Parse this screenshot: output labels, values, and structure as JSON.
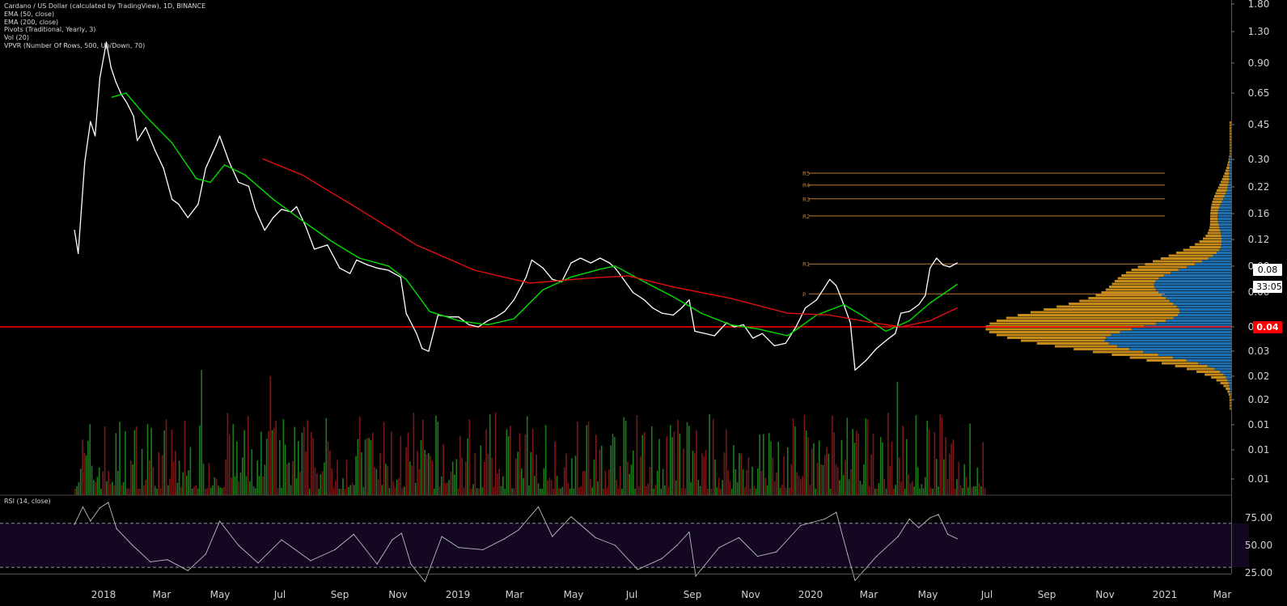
{
  "legend": {
    "symbol": "Cardano / US Dollar (calculated by TradingView), 1D, BINANCE",
    "ema50": "EMA (50, close)",
    "ema200": "EMA (200, close)",
    "pivots": "Pivots (Traditional, Yearly, 3)",
    "vol": "Vol (20)",
    "vpvr": "VPVR (Number Of Rows, 500, Up/Down, 70)"
  },
  "rsi_title": "RSI (14, close)",
  "badges": {
    "current_price": "0.08",
    "timer": "33:05",
    "line_price": "0.04"
  },
  "colors": {
    "background": "#000000",
    "price_line": "#ffffff",
    "ema50": "#00dd00",
    "ema200": "#e01010",
    "pivot": "#c27a2a",
    "horizontal_line": "#ff0000",
    "vol_up": "#1f8a1f",
    "vol_down": "#8a1a1a",
    "vpvr_up": "#1e6fb0",
    "vpvr_down": "#c48a1a",
    "rsi_band": "#140722"
  },
  "chart_data": {
    "type": "line",
    "price_axis_ticks": [
      "1.80",
      "1.30",
      "0.90",
      "0.65",
      "0.45",
      "0.30",
      "0.22",
      "0.16",
      "0.12",
      "0.08",
      "0.06",
      "0.04",
      "0.03",
      "0.02",
      "0.02",
      "0.01",
      "0.01",
      "0.01"
    ],
    "price_axis_scale": "log",
    "time_axis_ticks": [
      "2018",
      "Mar",
      "May",
      "Jul",
      "Sep",
      "Nov",
      "2019",
      "Mar",
      "May",
      "Jul",
      "Sep",
      "Nov",
      "2020",
      "Mar",
      "May",
      "Jul",
      "Sep",
      "Nov",
      "2021",
      "Mar"
    ],
    "pivots": [
      {
        "label": "R5",
        "value": 0.245
      },
      {
        "label": "R4",
        "value": 0.213
      },
      {
        "label": "R3",
        "value": 0.181
      },
      {
        "label": "R2",
        "value": 0.148
      },
      {
        "label": "R1",
        "value": 0.084
      },
      {
        "label": "P",
        "value": 0.059
      }
    ],
    "horizontal_line": 0.04,
    "series": [
      {
        "name": "Price",
        "values": [
          [
            "2017-12-01",
            0.125
          ],
          [
            "2017-12-05",
            0.095
          ],
          [
            "2017-12-12",
            0.28
          ],
          [
            "2017-12-18",
            0.45
          ],
          [
            "2017-12-23",
            0.38
          ],
          [
            "2017-12-28",
            0.75
          ],
          [
            "2018-01-04",
            1.15
          ],
          [
            "2018-01-09",
            0.85
          ],
          [
            "2018-01-14",
            0.72
          ],
          [
            "2018-01-20",
            0.62
          ],
          [
            "2018-01-26",
            0.56
          ],
          [
            "2018-02-02",
            0.48
          ],
          [
            "2018-02-06",
            0.36
          ],
          [
            "2018-02-15",
            0.42
          ],
          [
            "2018-02-25",
            0.32
          ],
          [
            "2018-03-06",
            0.26
          ],
          [
            "2018-03-15",
            0.18
          ],
          [
            "2018-03-22",
            0.17
          ],
          [
            "2018-04-01",
            0.145
          ],
          [
            "2018-04-12",
            0.17
          ],
          [
            "2018-04-20",
            0.26
          ],
          [
            "2018-05-01",
            0.34
          ],
          [
            "2018-05-05",
            0.38
          ],
          [
            "2018-05-15",
            0.28
          ],
          [
            "2018-05-25",
            0.22
          ],
          [
            "2018-06-05",
            0.21
          ],
          [
            "2018-06-12",
            0.16
          ],
          [
            "2018-06-22",
            0.125
          ],
          [
            "2018-07-01",
            0.145
          ],
          [
            "2018-07-10",
            0.16
          ],
          [
            "2018-07-20",
            0.155
          ],
          [
            "2018-07-26",
            0.165
          ],
          [
            "2018-08-05",
            0.13
          ],
          [
            "2018-08-14",
            0.1
          ],
          [
            "2018-08-28",
            0.105
          ],
          [
            "2018-09-10",
            0.08
          ],
          [
            "2018-09-21",
            0.075
          ],
          [
            "2018-09-28",
            0.088
          ],
          [
            "2018-10-10",
            0.083
          ],
          [
            "2018-10-20",
            0.08
          ],
          [
            "2018-11-01",
            0.078
          ],
          [
            "2018-11-14",
            0.072
          ],
          [
            "2018-11-20",
            0.047
          ],
          [
            "2018-12-01",
            0.037
          ],
          [
            "2018-12-07",
            0.031
          ],
          [
            "2018-12-14",
            0.03
          ],
          [
            "2018-12-24",
            0.046
          ],
          [
            "2019-01-05",
            0.045
          ],
          [
            "2019-01-15",
            0.045
          ],
          [
            "2019-01-26",
            0.041
          ],
          [
            "2019-02-05",
            0.04
          ],
          [
            "2019-02-15",
            0.043
          ],
          [
            "2019-02-24",
            0.045
          ],
          [
            "2019-03-05",
            0.048
          ],
          [
            "2019-03-15",
            0.055
          ],
          [
            "2019-03-28",
            0.072
          ],
          [
            "2019-04-03",
            0.088
          ],
          [
            "2019-04-15",
            0.08
          ],
          [
            "2019-04-25",
            0.07
          ],
          [
            "2019-05-05",
            0.068
          ],
          [
            "2019-05-15",
            0.085
          ],
          [
            "2019-05-25",
            0.09
          ],
          [
            "2019-06-05",
            0.085
          ],
          [
            "2019-06-15",
            0.09
          ],
          [
            "2019-06-25",
            0.085
          ],
          [
            "2019-07-01",
            0.08
          ],
          [
            "2019-07-10",
            0.07
          ],
          [
            "2019-07-20",
            0.06
          ],
          [
            "2019-08-01",
            0.055
          ],
          [
            "2019-08-10",
            0.05
          ],
          [
            "2019-08-20",
            0.047
          ],
          [
            "2019-09-01",
            0.046
          ],
          [
            "2019-09-10",
            0.05
          ],
          [
            "2019-09-18",
            0.055
          ],
          [
            "2019-09-24",
            0.038
          ],
          [
            "2019-10-05",
            0.037
          ],
          [
            "2019-10-15",
            0.036
          ],
          [
            "2019-10-28",
            0.042
          ],
          [
            "2019-11-05",
            0.04
          ],
          [
            "2019-11-15",
            0.041
          ],
          [
            "2019-11-25",
            0.035
          ],
          [
            "2019-12-05",
            0.037
          ],
          [
            "2019-12-18",
            0.032
          ],
          [
            "2019-12-30",
            0.033
          ],
          [
            "2020-01-10",
            0.04
          ],
          [
            "2020-01-20",
            0.05
          ],
          [
            "2020-02-01",
            0.055
          ],
          [
            "2020-02-15",
            0.07
          ],
          [
            "2020-02-22",
            0.065
          ],
          [
            "2020-03-01",
            0.052
          ],
          [
            "2020-03-08",
            0.042
          ],
          [
            "2020-03-13",
            0.024
          ],
          [
            "2020-03-25",
            0.027
          ],
          [
            "2020-04-05",
            0.031
          ],
          [
            "2020-04-15",
            0.034
          ],
          [
            "2020-04-25",
            0.037
          ],
          [
            "2020-05-01",
            0.047
          ],
          [
            "2020-05-10",
            0.048
          ],
          [
            "2020-05-20",
            0.052
          ],
          [
            "2020-05-27",
            0.058
          ],
          [
            "2020-06-01",
            0.08
          ],
          [
            "2020-06-08",
            0.09
          ],
          [
            "2020-06-15",
            0.083
          ],
          [
            "2020-06-22",
            0.081
          ],
          [
            "2020-06-30",
            0.085
          ]
        ]
      },
      {
        "name": "EMA 50",
        "values": [
          [
            "2018-01-10",
            0.6
          ],
          [
            "2018-01-25",
            0.63
          ],
          [
            "2018-02-15",
            0.48
          ],
          [
            "2018-03-15",
            0.35
          ],
          [
            "2018-04-10",
            0.23
          ],
          [
            "2018-04-25",
            0.22
          ],
          [
            "2018-05-10",
            0.27
          ],
          [
            "2018-06-01",
            0.24
          ],
          [
            "2018-07-01",
            0.18
          ],
          [
            "2018-08-01",
            0.14
          ],
          [
            "2018-09-01",
            0.11
          ],
          [
            "2018-10-01",
            0.09
          ],
          [
            "2018-11-01",
            0.082
          ],
          [
            "2018-11-20",
            0.07
          ],
          [
            "2018-12-15",
            0.048
          ],
          [
            "2019-01-15",
            0.043
          ],
          [
            "2019-02-15",
            0.041
          ],
          [
            "2019-03-15",
            0.044
          ],
          [
            "2019-04-15",
            0.062
          ],
          [
            "2019-05-15",
            0.072
          ],
          [
            "2019-06-15",
            0.079
          ],
          [
            "2019-07-01",
            0.082
          ],
          [
            "2019-08-01",
            0.068
          ],
          [
            "2019-09-01",
            0.057
          ],
          [
            "2019-10-01",
            0.047
          ],
          [
            "2019-11-01",
            0.041
          ],
          [
            "2019-12-01",
            0.039
          ],
          [
            "2020-01-01",
            0.036
          ],
          [
            "2020-02-01",
            0.046
          ],
          [
            "2020-03-01",
            0.052
          ],
          [
            "2020-03-20",
            0.046
          ],
          [
            "2020-04-15",
            0.038
          ],
          [
            "2020-05-10",
            0.043
          ],
          [
            "2020-06-01",
            0.053
          ],
          [
            "2020-06-30",
            0.066
          ]
        ]
      },
      {
        "name": "EMA 200",
        "values": [
          [
            "2018-06-20",
            0.29
          ],
          [
            "2018-08-01",
            0.24
          ],
          [
            "2018-10-01",
            0.16
          ],
          [
            "2018-12-01",
            0.105
          ],
          [
            "2019-02-01",
            0.078
          ],
          [
            "2019-04-01",
            0.067
          ],
          [
            "2019-06-01",
            0.071
          ],
          [
            "2019-07-15",
            0.073
          ],
          [
            "2019-09-01",
            0.064
          ],
          [
            "2019-11-01",
            0.056
          ],
          [
            "2020-01-01",
            0.047
          ],
          [
            "2020-02-15",
            0.046
          ],
          [
            "2020-04-01",
            0.042
          ],
          [
            "2020-05-01",
            0.04
          ],
          [
            "2020-06-01",
            0.043
          ],
          [
            "2020-06-30",
            0.05
          ]
        ]
      },
      {
        "name": "RSI",
        "values": [
          [
            "2017-12-01",
            69
          ],
          [
            "2017-12-10",
            85
          ],
          [
            "2017-12-18",
            72
          ],
          [
            "2017-12-28",
            84
          ],
          [
            "2018-01-06",
            89
          ],
          [
            "2018-01-15",
            65
          ],
          [
            "2018-02-01",
            50
          ],
          [
            "2018-02-20",
            35
          ],
          [
            "2018-03-10",
            37
          ],
          [
            "2018-04-01",
            27
          ],
          [
            "2018-04-20",
            42
          ],
          [
            "2018-05-05",
            72
          ],
          [
            "2018-05-25",
            50
          ],
          [
            "2018-06-15",
            34
          ],
          [
            "2018-07-10",
            55
          ],
          [
            "2018-08-10",
            36
          ],
          [
            "2018-09-05",
            46
          ],
          [
            "2018-09-25",
            60
          ],
          [
            "2018-10-20",
            33
          ],
          [
            "2018-11-05",
            55
          ],
          [
            "2018-11-15",
            61
          ],
          [
            "2018-11-25",
            33
          ],
          [
            "2018-12-10",
            17
          ],
          [
            "2018-12-28",
            58
          ],
          [
            "2019-01-15",
            48
          ],
          [
            "2019-02-10",
            46
          ],
          [
            "2019-03-05",
            56
          ],
          [
            "2019-03-20",
            64
          ],
          [
            "2019-04-10",
            85
          ],
          [
            "2019-04-25",
            58
          ],
          [
            "2019-05-15",
            76
          ],
          [
            "2019-06-10",
            57
          ],
          [
            "2019-07-01",
            50
          ],
          [
            "2019-07-25",
            28
          ],
          [
            "2019-08-20",
            38
          ],
          [
            "2019-09-05",
            50
          ],
          [
            "2019-09-18",
            62
          ],
          [
            "2019-09-25",
            22
          ],
          [
            "2019-10-20",
            48
          ],
          [
            "2019-11-10",
            57
          ],
          [
            "2019-11-30",
            40
          ],
          [
            "2019-12-20",
            44
          ],
          [
            "2020-01-15",
            68
          ],
          [
            "2020-02-10",
            74
          ],
          [
            "2020-02-22",
            80
          ],
          [
            "2020-03-05",
            42
          ],
          [
            "2020-03-13",
            18
          ],
          [
            "2020-04-05",
            40
          ],
          [
            "2020-04-28",
            58
          ],
          [
            "2020-05-10",
            74
          ],
          [
            "2020-05-20",
            66
          ],
          [
            "2020-06-01",
            75
          ],
          [
            "2020-06-10",
            78
          ],
          [
            "2020-06-20",
            60
          ],
          [
            "2020-06-30",
            56
          ]
        ]
      }
    ],
    "rsi_axis_ticks": [
      "75.00",
      "50.00",
      "25.00"
    ],
    "rsi_bands": [
      70,
      30
    ]
  }
}
